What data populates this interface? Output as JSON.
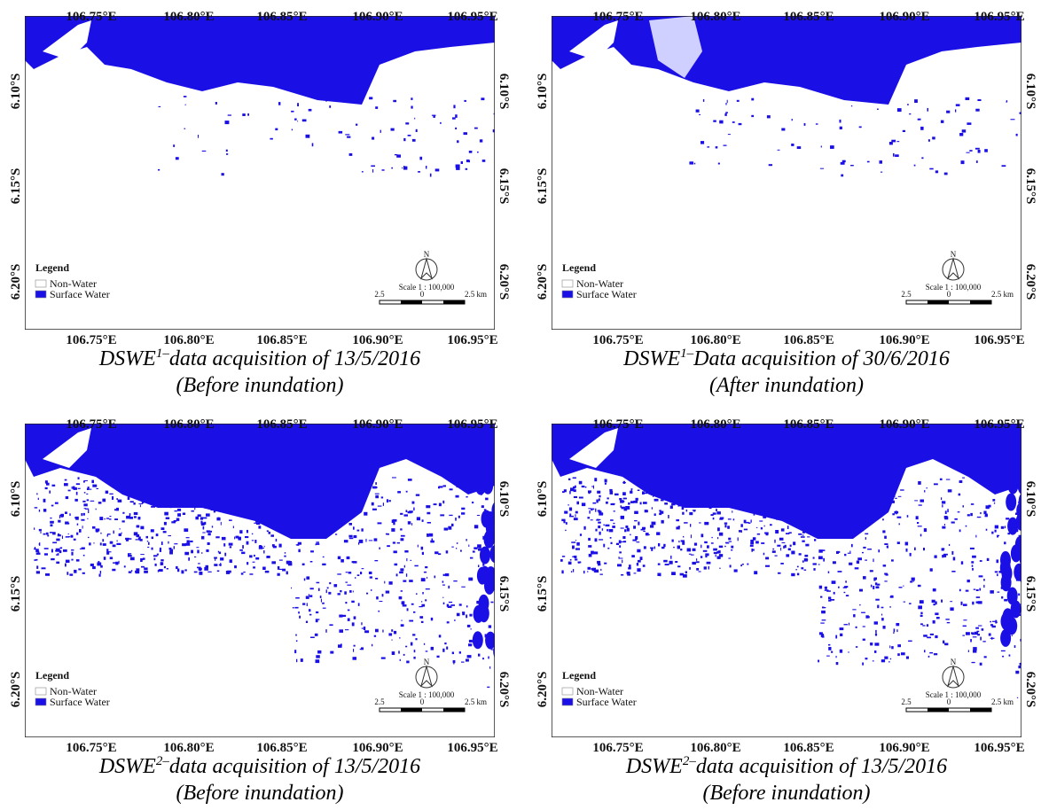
{
  "panels": [
    {
      "top_axis": [
        "106.75°E",
        "106.80°E",
        "106.85°E",
        "106.90°E",
        "106.95°E"
      ],
      "bottom_axis": [
        "106.75°E",
        "106.80°E",
        "106.85°E",
        "106.90°E",
        "106.95°E"
      ],
      "left_axis": [
        "6.10°S",
        "6.15°S",
        "6.20°S"
      ],
      "right_axis": [
        "6.10°S",
        "6.15°S",
        "6.20°S"
      ],
      "legend": {
        "title": "Legend",
        "items": [
          "Non-Water",
          "Surface Water"
        ]
      },
      "north": "N",
      "scale": "Scale 1 : 100,000",
      "scale_labels": [
        "2.5",
        "0",
        "2.5 km"
      ],
      "caption": {
        "dataset": "DSWE",
        "superscript": "1–",
        "text": "data acquisition of 13/5/2016",
        "note": "(Before inundation)"
      }
    },
    {
      "top_axis": [
        "106.75°E",
        "106.80°E",
        "106.85°E",
        "106.90°E",
        "106.95°E"
      ],
      "bottom_axis": [
        "106.75°E",
        "106.80°E",
        "106.85°E",
        "106.90°E",
        "106.95°E"
      ],
      "left_axis": [
        "6.10°S",
        "6.15°S",
        "6.20°S"
      ],
      "right_axis": [
        "6.10°S",
        "6.15°S",
        "6.20°S"
      ],
      "legend": {
        "title": "Legend",
        "items": [
          "Non-Water",
          "Surface Water"
        ]
      },
      "north": "N",
      "scale": "Scale 1 : 100,000",
      "scale_labels": [
        "2.5",
        "0",
        "2.5 km"
      ],
      "caption": {
        "dataset": "DSWE",
        "superscript": "1–",
        "text": "Data acquisition of 30/6/2016",
        "note": "(After inundation)"
      }
    },
    {
      "top_axis": [
        "106.75°E",
        "106.80°E",
        "106.85°E",
        "106.90°E",
        "106.95°E"
      ],
      "bottom_axis": [
        "106.75°E",
        "106.80°E",
        "106.85°E",
        "106.90°E",
        "106.95°E"
      ],
      "left_axis": [
        "6.10°S",
        "6.15°S",
        "6.20°S"
      ],
      "right_axis": [
        "6.10°S",
        "6.15°S",
        "6.20°S"
      ],
      "legend": {
        "title": "Legend",
        "items": [
          "Non-Water",
          "Surface Water"
        ]
      },
      "north": "N",
      "scale": "Scale 1 : 100,000",
      "scale_labels": [
        "2.5",
        "0",
        "2.5 km"
      ],
      "caption": {
        "dataset": "DSWE",
        "superscript": "2–",
        "text": "data acquisition of 13/5/2016",
        "note": "(Before inundation)"
      }
    },
    {
      "top_axis": [
        "106.75°E",
        "106.80°E",
        "106.85°E",
        "106.90°E",
        "106.95°E"
      ],
      "bottom_axis": [
        "106.75°E",
        "106.80°E",
        "106.85°E",
        "106.90°E",
        "106.95°E"
      ],
      "left_axis": [
        "6.10°S",
        "6.15°S",
        "6.20°S"
      ],
      "right_axis": [
        "6.10°S",
        "6.15°S",
        "6.20°S"
      ],
      "legend": {
        "title": "Legend",
        "items": [
          "Non-Water",
          "Surface Water"
        ]
      },
      "north": "N",
      "scale": "Scale 1 : 100,000",
      "scale_labels": [
        "2.5",
        "0",
        "2.5 km"
      ],
      "caption": {
        "dataset": "DSWE",
        "superscript": "2–",
        "text": "data acquisition of 13/5/2016",
        "note": "(Before inundation)"
      }
    }
  ]
}
